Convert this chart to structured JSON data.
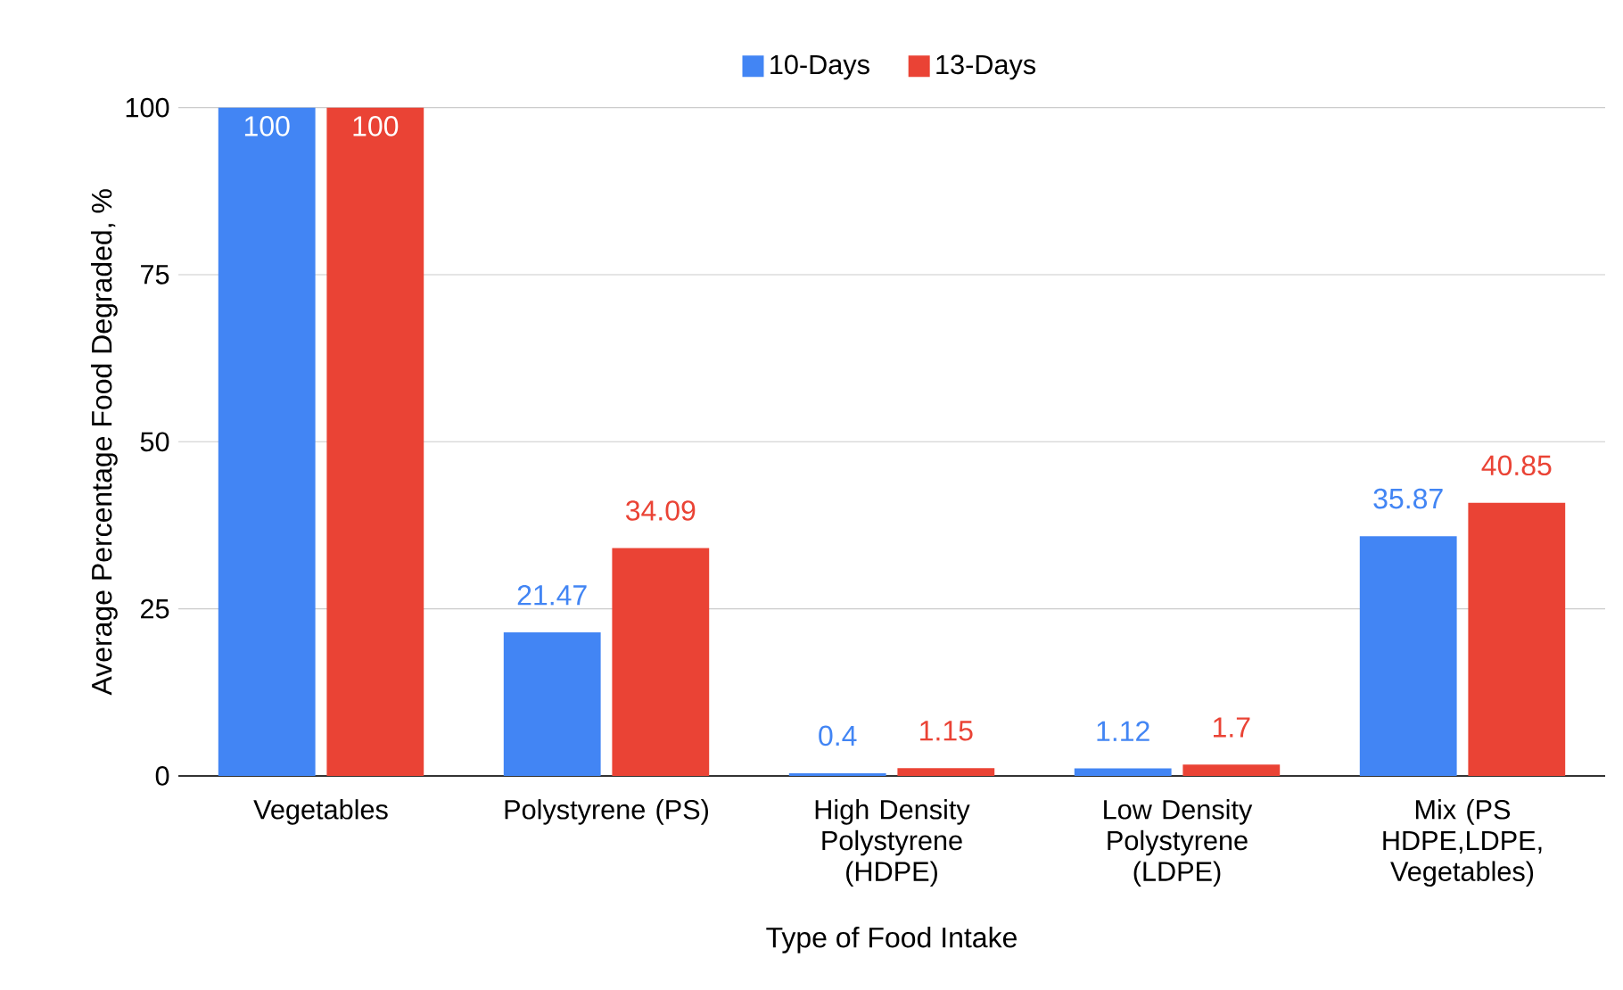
{
  "chart_data": {
    "type": "bar",
    "xlabel": "Type of Food Intake",
    "ylabel": "Average Percentage Food Degraded, %",
    "categories": [
      "Vegetables",
      "Polystyrene (PS)",
      "High Density Polystyrene (HDPE)",
      "Low Density Polystyrene (LDPE)",
      "Mix (PS HDPE,LDPE, Vegetables)"
    ],
    "series": [
      {
        "name": "10-Days",
        "color": "#4285f4",
        "values": [
          100,
          21.47,
          0.4,
          1.12,
          35.87
        ]
      },
      {
        "name": "13-Days",
        "color": "#ea4335",
        "values": [
          100,
          34.09,
          1.15,
          1.7,
          40.85
        ]
      }
    ],
    "ylim": [
      0,
      100
    ],
    "yticks": [
      0,
      25,
      50,
      75,
      100
    ],
    "grid": "y",
    "legend": "top",
    "data_labels": true
  }
}
